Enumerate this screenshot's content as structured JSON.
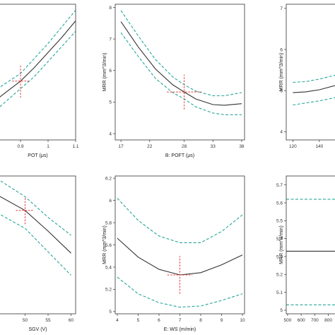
{
  "accent_colors": {
    "mean": "#333333",
    "band": "#26a69a",
    "marker": "#e53935"
  },
  "chart_data": [
    {
      "id": "pot",
      "type": "line",
      "xlabel": "POT (μs)",
      "ylabel": "",
      "xlim": [
        0.8,
        1.1
      ],
      "ylim": [
        3.8,
        8.3
      ],
      "xticks": [
        "0.9",
        "1",
        "1.1"
      ],
      "yticks": [],
      "marker": {
        "x": 0.9,
        "y": 5.75,
        "dx": 0.03,
        "dy": 0.55
      },
      "series": [
        {
          "role": "mean",
          "x": [
            0.8,
            0.85,
            0.9,
            0.95,
            1.0,
            1.05,
            1.1
          ],
          "values": [
            5.05,
            5.4,
            5.75,
            6.2,
            6.7,
            7.2,
            7.75
          ]
        },
        {
          "role": "upper",
          "x": [
            0.8,
            0.85,
            0.9,
            0.95,
            1.0,
            1.05,
            1.1
          ],
          "values": [
            5.4,
            5.7,
            6.0,
            6.5,
            7.0,
            7.55,
            8.1
          ]
        },
        {
          "role": "lower",
          "x": [
            0.8,
            0.85,
            0.9,
            0.95,
            1.0,
            1.05,
            1.1
          ],
          "values": [
            4.7,
            5.1,
            5.5,
            5.9,
            6.4,
            6.9,
            7.4
          ]
        }
      ]
    },
    {
      "id": "poft",
      "type": "line",
      "xlabel": "B: POFT (μs)",
      "ylabel": "MRR (mm^3/min)",
      "xlim": [
        16,
        38.5
      ],
      "ylim": [
        3.8,
        8.1
      ],
      "xticks": [
        "17",
        "22",
        "28",
        "33",
        "38"
      ],
      "yticks": [
        "4",
        "5",
        "6",
        "7",
        "8"
      ],
      "marker": {
        "x": 28,
        "y": 5.32,
        "dx": 3,
        "dy": 0.55
      },
      "series": [
        {
          "role": "mean",
          "x": [
            17,
            20,
            23,
            26,
            28,
            30,
            33,
            35,
            38
          ],
          "values": [
            7.55,
            6.75,
            6.05,
            5.55,
            5.32,
            5.1,
            4.92,
            4.9,
            4.95
          ]
        },
        {
          "role": "upper",
          "x": [
            17,
            20,
            23,
            26,
            28,
            30,
            33,
            35,
            38
          ],
          "values": [
            7.9,
            7.1,
            6.35,
            5.8,
            5.55,
            5.35,
            5.2,
            5.2,
            5.3
          ]
        },
        {
          "role": "lower",
          "x": [
            17,
            20,
            23,
            26,
            28,
            30,
            33,
            35,
            38
          ],
          "values": [
            7.2,
            6.45,
            5.75,
            5.3,
            5.1,
            4.85,
            4.65,
            4.6,
            4.6
          ]
        }
      ]
    },
    {
      "id": "c",
      "type": "line",
      "xlabel": "",
      "ylabel": "MRR (mm^3/min)",
      "xlim": [
        115,
        155
      ],
      "ylim": [
        3.8,
        7.1
      ],
      "xticks": [
        "120",
        "140"
      ],
      "yticks": [
        "4",
        "5",
        "6",
        "7"
      ],
      "series": [
        {
          "role": "mean",
          "x": [
            120,
            130,
            140,
            155
          ],
          "values": [
            4.95,
            4.97,
            5.02,
            5.15
          ]
        },
        {
          "role": "upper",
          "x": [
            120,
            130,
            140,
            155
          ],
          "values": [
            5.2,
            5.22,
            5.28,
            5.4
          ]
        },
        {
          "role": "lower",
          "x": [
            120,
            130,
            140,
            155
          ],
          "values": [
            4.65,
            4.7,
            4.75,
            4.85
          ]
        }
      ]
    },
    {
      "id": "sgv",
      "type": "line",
      "xlabel": "SGV (V)",
      "ylabel": "",
      "xlim": [
        43,
        61
      ],
      "ylim": [
        4.9,
        5.9
      ],
      "xticks": [
        "50",
        "55",
        "60"
      ],
      "yticks": [],
      "marker": {
        "x": 50,
        "y": 5.65,
        "dx": 2,
        "dy": 0.1
      },
      "series": [
        {
          "role": "mean",
          "x": [
            43,
            50,
            55,
            60
          ],
          "values": [
            5.78,
            5.65,
            5.5,
            5.34
          ]
        },
        {
          "role": "upper",
          "x": [
            43,
            50,
            55,
            60
          ],
          "values": [
            5.9,
            5.75,
            5.6,
            5.47
          ]
        },
        {
          "role": "lower",
          "x": [
            43,
            50,
            55,
            60
          ],
          "values": [
            5.65,
            5.52,
            5.35,
            5.18
          ]
        }
      ]
    },
    {
      "id": "ws",
      "type": "line",
      "xlabel": "E: WS (m/min)",
      "ylabel": "MRR (mm^3/min)",
      "xlim": [
        3.9,
        10.1
      ],
      "ylim": [
        4.98,
        6.22
      ],
      "xticks": [
        "4",
        "5",
        "6",
        "7",
        "8",
        "9",
        "10"
      ],
      "yticks": [
        "5",
        "5.2",
        "5.4",
        "5.6",
        "5.8",
        "6",
        "6.2"
      ],
      "marker": {
        "x": 7,
        "y": 5.33,
        "dx": 0.6,
        "dy": 0.17
      },
      "series": [
        {
          "role": "mean",
          "x": [
            4,
            5,
            6,
            7,
            8,
            9,
            10
          ],
          "values": [
            5.66,
            5.49,
            5.38,
            5.33,
            5.35,
            5.42,
            5.51
          ]
        },
        {
          "role": "upper",
          "x": [
            4,
            5,
            6,
            7,
            8,
            9,
            10
          ],
          "values": [
            6.02,
            5.82,
            5.68,
            5.62,
            5.62,
            5.72,
            5.87
          ]
        },
        {
          "role": "lower",
          "x": [
            4,
            5,
            6,
            7,
            8,
            9,
            10
          ],
          "values": [
            5.31,
            5.16,
            5.08,
            5.04,
            5.05,
            5.1,
            5.16
          ]
        }
      ]
    },
    {
      "id": "last",
      "type": "line",
      "xlabel": "",
      "ylabel": "MRR (mm^3/min)",
      "xlim": [
        490,
        880
      ],
      "ylim": [
        4.98,
        5.75
      ],
      "xticks": [
        "500",
        "600",
        "700",
        "800"
      ],
      "yticks": [
        "5",
        "5.1",
        "5.2",
        "5.3",
        "5.4",
        "5.5",
        "5.6",
        "5.7"
      ],
      "series": [
        {
          "role": "mean",
          "x": [
            490,
            880
          ],
          "values": [
            5.33,
            5.33
          ]
        },
        {
          "role": "upper",
          "x": [
            490,
            880
          ],
          "values": [
            5.62,
            5.62
          ]
        },
        {
          "role": "lower",
          "x": [
            490,
            880
          ],
          "values": [
            5.03,
            5.03
          ]
        }
      ]
    }
  ]
}
